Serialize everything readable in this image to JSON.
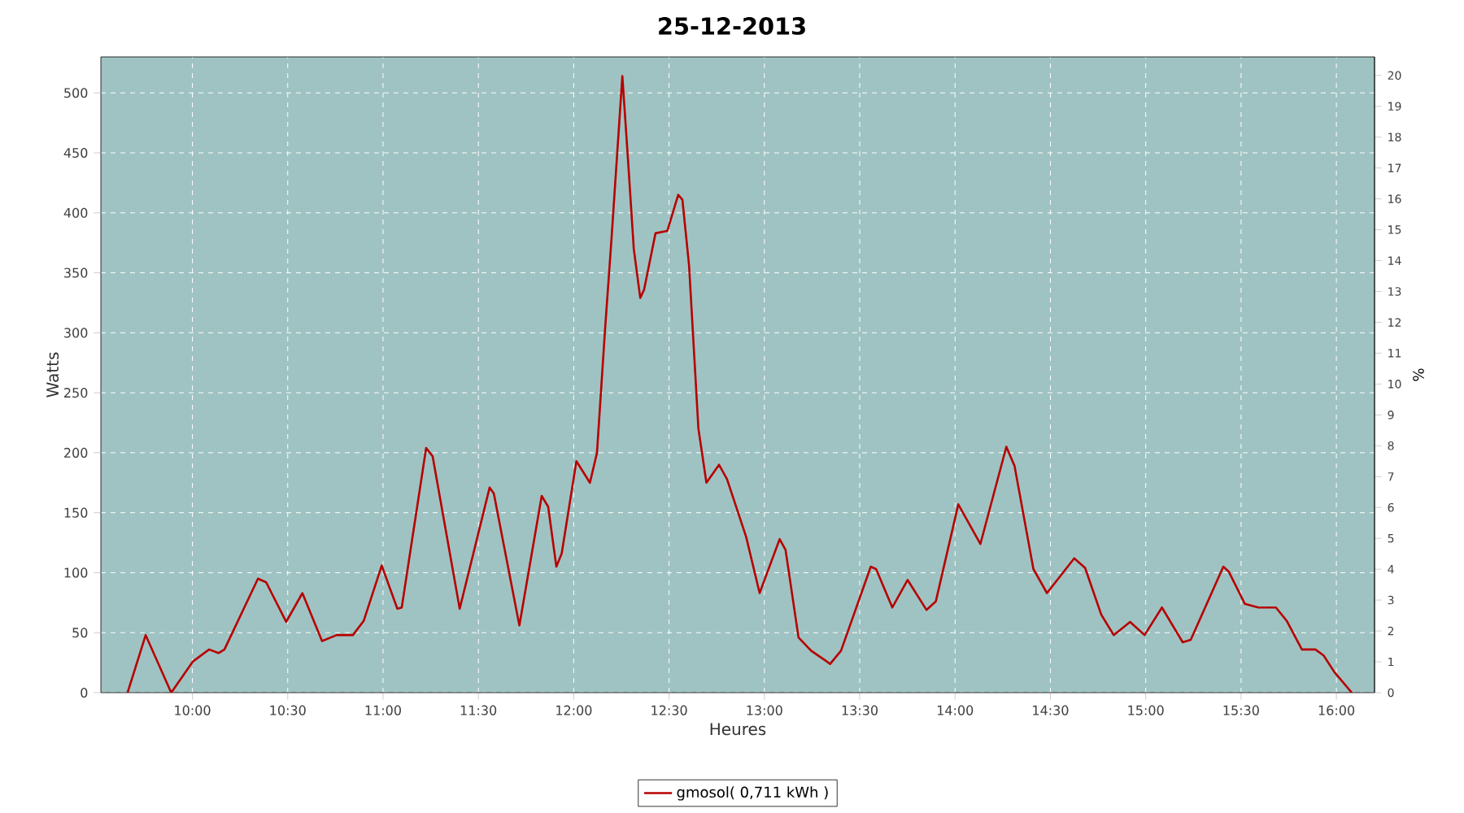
{
  "chart_data": {
    "type": "line",
    "title": "25-12-2013",
    "xlabel": "Heures",
    "ylabel": "Watts",
    "y2label": "%",
    "x": [
      9.66,
      9.755,
      9.889,
      10.003,
      10.088,
      10.137,
      10.168,
      10.344,
      10.387,
      10.492,
      10.577,
      10.68,
      10.757,
      10.842,
      10.899,
      10.993,
      11.075,
      11.098,
      11.226,
      11.26,
      11.402,
      11.559,
      11.581,
      11.715,
      11.832,
      11.866,
      11.909,
      11.937,
      12.014,
      12.085,
      12.122,
      12.164,
      12.198,
      12.255,
      12.284,
      12.315,
      12.349,
      12.369,
      12.429,
      12.491,
      12.548,
      12.57,
      12.605,
      12.654,
      12.696,
      12.762,
      12.804,
      12.904,
      12.975,
      13.08,
      13.111,
      13.179,
      13.245,
      13.345,
      13.402,
      13.558,
      13.586,
      13.671,
      13.751,
      13.85,
      13.899,
      14.017,
      14.133,
      14.269,
      14.312,
      14.411,
      14.482,
      14.625,
      14.682,
      14.767,
      14.832,
      14.918,
      14.994,
      15.085,
      15.194,
      15.236,
      15.407,
      15.435,
      15.52,
      15.591,
      15.683,
      15.739,
      15.819,
      15.89,
      15.933,
      15.99,
      16.081
    ],
    "series": [
      {
        "name": "gmosol( 0,711 kWh )",
        "color": "#b70000",
        "values": [
          0,
          48,
          0,
          26,
          36,
          33,
          36,
          95,
          92,
          59,
          83,
          43,
          48,
          48,
          60,
          106,
          70,
          71,
          204,
          197,
          70,
          171,
          166,
          56,
          164,
          155,
          105,
          116,
          193,
          175,
          200,
          302,
          378,
          514,
          446,
          370,
          329,
          336,
          383,
          385,
          415,
          411,
          356,
          220,
          175,
          190,
          178,
          130,
          83,
          128,
          119,
          46,
          35,
          24,
          35,
          105,
          103,
          71,
          94,
          69,
          76,
          157,
          124,
          205,
          189,
          103,
          83,
          112,
          104,
          65,
          48,
          59,
          48,
          71,
          42,
          44,
          105,
          101,
          74,
          71,
          71,
          60,
          36,
          36,
          31,
          17,
          0
        ]
      }
    ],
    "xlim": [
      9.52,
      16.2
    ],
    "xticks": [
      {
        "value": 10,
        "label": "10:00"
      },
      {
        "value": 10.5,
        "label": "10:30"
      },
      {
        "value": 11,
        "label": "11:00"
      },
      {
        "value": 11.5,
        "label": "11:30"
      },
      {
        "value": 12,
        "label": "12:00"
      },
      {
        "value": 12.5,
        "label": "12:30"
      },
      {
        "value": 13,
        "label": "13:00"
      },
      {
        "value": 13.5,
        "label": "13:30"
      },
      {
        "value": 14,
        "label": "14:00"
      },
      {
        "value": 14.5,
        "label": "14:30"
      },
      {
        "value": 15,
        "label": "15:00"
      },
      {
        "value": 15.5,
        "label": "15:30"
      },
      {
        "value": 16,
        "label": "16:00"
      }
    ],
    "ylim": [
      0,
      530
    ],
    "yticks": [
      0,
      50,
      100,
      150,
      200,
      250,
      300,
      350,
      400,
      450,
      500
    ],
    "y2lim": [
      0,
      20.6
    ],
    "y2ticks": [
      0,
      1,
      2,
      3,
      4,
      5,
      6,
      7,
      8,
      9,
      10,
      11,
      12,
      13,
      14,
      15,
      16,
      17,
      18,
      19,
      20
    ],
    "grid": true,
    "legend": "bottom",
    "line_style": "solid",
    "marker": "none"
  }
}
